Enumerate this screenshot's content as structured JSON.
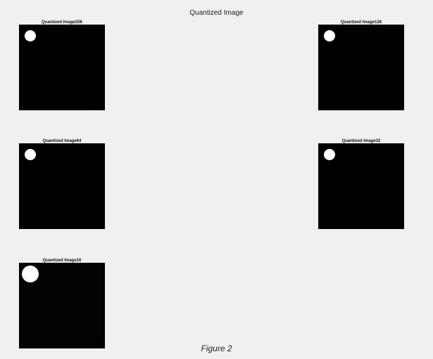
{
  "figure": {
    "title": "Quantized Image",
    "caption": "Figure 2"
  },
  "panels": [
    {
      "title": "Quantized Image256",
      "levels": 256
    },
    {
      "title": "Quantized Image128",
      "levels": 128
    },
    {
      "title": "Quantized Image64",
      "levels": 64
    },
    {
      "title": "Quantized Image32",
      "levels": 32
    },
    {
      "title": "Quantized Image16",
      "levels": 16
    }
  ]
}
